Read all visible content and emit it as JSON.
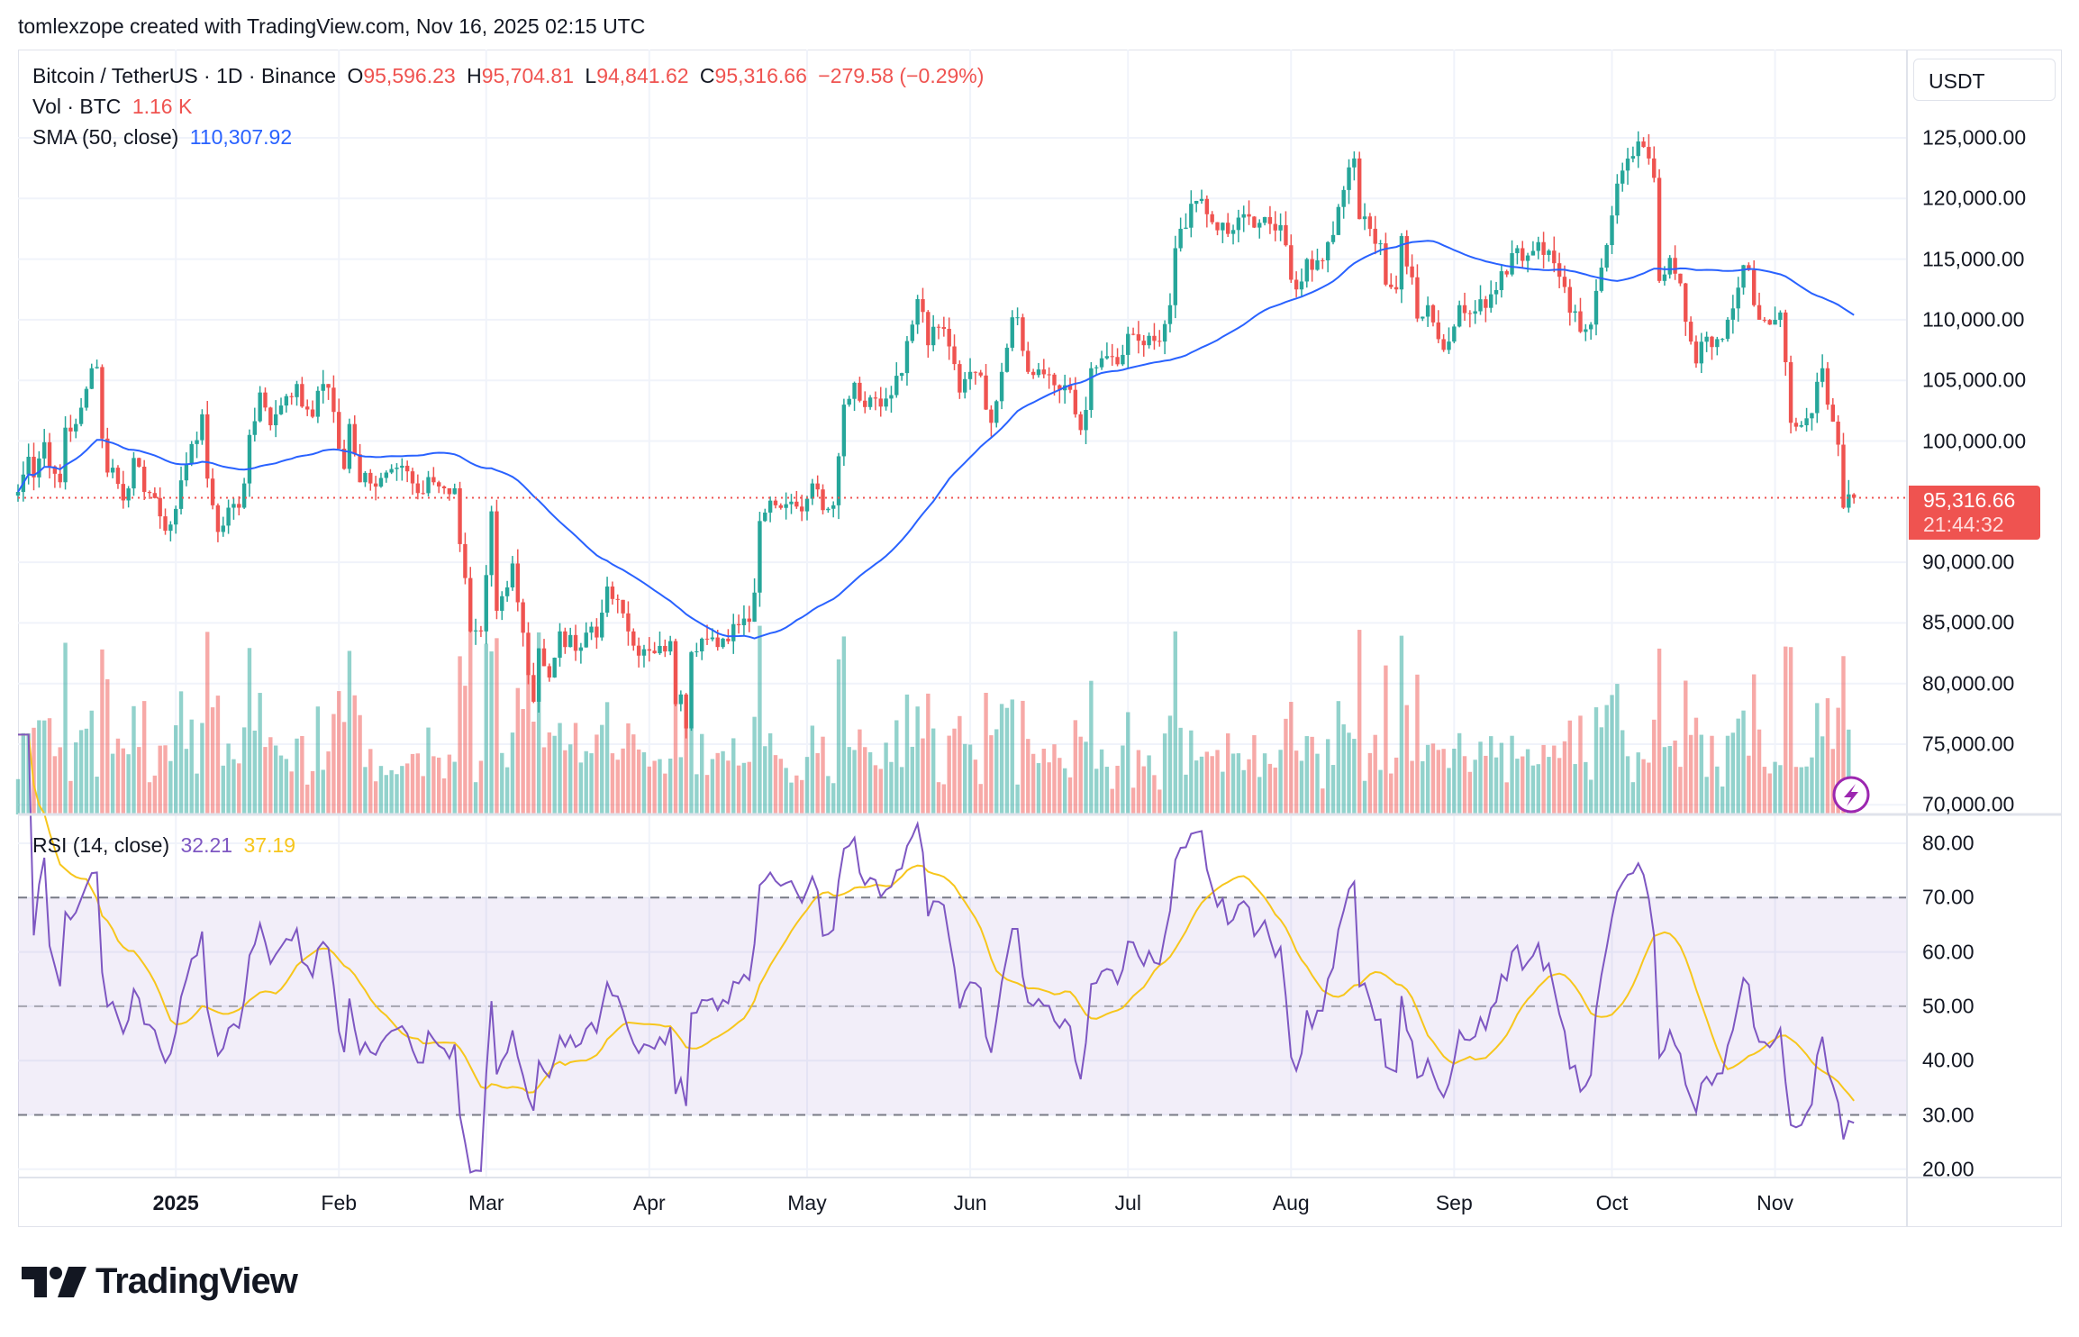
{
  "attribution": "tomlexzope created with TradingView.com, Nov 16, 2025 02:15 UTC",
  "legend": {
    "symbol": "Bitcoin / TetherUS · 1D · Binance",
    "o_label": "O",
    "open": "95,596.23",
    "h_label": "H",
    "high": "95,704.81",
    "l_label": "L",
    "low": "94,841.62",
    "c_label": "C",
    "close": "95,316.66",
    "change": "−279.58 (−0.29%)",
    "vol_label": "Vol · BTC",
    "vol_value": "1.16 K",
    "sma_label": "SMA (50, close)",
    "sma_value": "110,307.92",
    "rsi_label": "RSI (14, close)",
    "rsi_value": "32.21",
    "rsi_ma_value": "37.19"
  },
  "price_axis": {
    "currency": "USDT",
    "ticks": [
      "125,000.00",
      "120,000.00",
      "115,000.00",
      "110,000.00",
      "105,000.00",
      "100,000.00",
      "90,000.00",
      "85,000.00",
      "80,000.00",
      "75,000.00",
      "70,000.00"
    ],
    "last_price": "95,316.66",
    "countdown": "21:44:32"
  },
  "rsi_axis": {
    "ticks": [
      "80.00",
      "70.00",
      "60.00",
      "50.00",
      "40.00",
      "30.00",
      "20.00"
    ],
    "bands": [
      30,
      50,
      70
    ]
  },
  "time_axis": [
    {
      "label": "2025",
      "date": "2025-01-01",
      "bold": true
    },
    {
      "label": "Feb",
      "date": "2025-02-01"
    },
    {
      "label": "Mar",
      "date": "2025-03-01"
    },
    {
      "label": "Apr",
      "date": "2025-04-01"
    },
    {
      "label": "May",
      "date": "2025-05-01"
    },
    {
      "label": "Jun",
      "date": "2025-06-01"
    },
    {
      "label": "Jul",
      "date": "2025-07-01"
    },
    {
      "label": "Aug",
      "date": "2025-08-01"
    },
    {
      "label": "Sep",
      "date": "2025-09-01"
    },
    {
      "label": "Oct",
      "date": "2025-10-01"
    },
    {
      "label": "Nov",
      "date": "2025-11-01"
    }
  ],
  "colors": {
    "up": "#26a69a",
    "down": "#ef5350",
    "sma": "#2962ff",
    "rsi": "#7e57c2",
    "rsi_ma": "#f7c61c",
    "grid": "#f0f3fa"
  },
  "brand": "TradingView",
  "chart_data": {
    "type": "candlestick",
    "interval": "1D",
    "x_range": [
      "2024-12-02",
      "2025-11-16"
    ],
    "ylim": [
      70000,
      126000
    ],
    "rsi_ylim": [
      20,
      82
    ],
    "last_candle": {
      "date": "2025-11-16",
      "open": 95596.23,
      "high": 95704.81,
      "low": 94841.62,
      "close": 95316.66
    },
    "closes": [
      [
        "2024-12-02",
        95800
      ],
      [
        "2024-12-04",
        98700
      ],
      [
        "2024-12-05",
        97000
      ],
      [
        "2024-12-07",
        99900
      ],
      [
        "2024-12-09",
        97300
      ],
      [
        "2024-12-10",
        96600
      ],
      [
        "2024-12-11",
        101100
      ],
      [
        "2024-12-13",
        101400
      ],
      [
        "2024-12-15",
        104300
      ],
      [
        "2024-12-16",
        106000
      ],
      [
        "2024-12-17",
        106100
      ],
      [
        "2024-12-18",
        100200
      ],
      [
        "2024-12-19",
        97400
      ],
      [
        "2024-12-20",
        97800
      ],
      [
        "2024-12-22",
        95100
      ],
      [
        "2024-12-24",
        98600
      ],
      [
        "2024-12-26",
        95800
      ],
      [
        "2024-12-28",
        95300
      ],
      [
        "2024-12-30",
        92600
      ],
      [
        "2025-01-01",
        94400
      ],
      [
        "2025-01-03",
        98100
      ],
      [
        "2025-01-06",
        102200
      ],
      [
        "2025-01-07",
        96900
      ],
      [
        "2025-01-09",
        92500
      ],
      [
        "2025-01-11",
        94500
      ],
      [
        "2025-01-13",
        94500
      ],
      [
        "2025-01-14",
        96500
      ],
      [
        "2025-01-15",
        100500
      ],
      [
        "2025-01-17",
        104000
      ],
      [
        "2025-01-19",
        101300
      ],
      [
        "2025-01-20",
        102200
      ],
      [
        "2025-01-22",
        103700
      ],
      [
        "2025-01-24",
        104700
      ],
      [
        "2025-01-26",
        102600
      ],
      [
        "2025-01-27",
        102000
      ],
      [
        "2025-01-29",
        104700
      ],
      [
        "2025-01-31",
        102400
      ],
      [
        "2025-02-02",
        97700
      ],
      [
        "2025-02-03",
        101400
      ],
      [
        "2025-02-05",
        96600
      ],
      [
        "2025-02-07",
        96500
      ],
      [
        "2025-02-10",
        97400
      ],
      [
        "2025-02-12",
        97800
      ],
      [
        "2025-02-14",
        97500
      ],
      [
        "2025-02-17",
        95700
      ],
      [
        "2025-02-19",
        96600
      ],
      [
        "2025-02-21",
        96100
      ],
      [
        "2025-02-23",
        96100
      ],
      [
        "2025-02-24",
        91500
      ],
      [
        "2025-02-25",
        88700
      ],
      [
        "2025-02-26",
        84300
      ],
      [
        "2025-02-28",
        84300
      ],
      [
        "2025-03-02",
        94200
      ],
      [
        "2025-03-03",
        86000
      ],
      [
        "2025-03-04",
        87200
      ],
      [
        "2025-03-06",
        89900
      ],
      [
        "2025-03-07",
        86700
      ],
      [
        "2025-03-09",
        80700
      ],
      [
        "2025-03-10",
        78500
      ],
      [
        "2025-03-11",
        82900
      ],
      [
        "2025-03-13",
        80500
      ],
      [
        "2025-03-15",
        84300
      ],
      [
        "2025-03-18",
        82700
      ],
      [
        "2025-03-20",
        84200
      ],
      [
        "2025-03-22",
        83800
      ],
      [
        "2025-03-24",
        88000
      ],
      [
        "2025-03-26",
        86900
      ],
      [
        "2025-03-28",
        84300
      ],
      [
        "2025-03-30",
        82300
      ],
      [
        "2025-04-02",
        82500
      ],
      [
        "2025-04-03",
        83100
      ],
      [
        "2025-04-05",
        83500
      ],
      [
        "2025-04-06",
        78300
      ],
      [
        "2025-04-07",
        79100
      ],
      [
        "2025-04-08",
        76300
      ],
      [
        "2025-04-09",
        82600
      ],
      [
        "2025-04-11",
        83700
      ],
      [
        "2025-04-13",
        83800
      ],
      [
        "2025-04-15",
        83700
      ],
      [
        "2025-04-17",
        84900
      ],
      [
        "2025-04-20",
        85100
      ],
      [
        "2025-04-21",
        87500
      ],
      [
        "2025-04-22",
        93400
      ],
      [
        "2025-04-25",
        94700
      ],
      [
        "2025-04-28",
        95000
      ],
      [
        "2025-04-30",
        94200
      ],
      [
        "2025-05-02",
        96500
      ],
      [
        "2025-05-04",
        94300
      ],
      [
        "2025-05-06",
        94700
      ],
      [
        "2025-05-08",
        103000
      ],
      [
        "2025-05-10",
        104800
      ],
      [
        "2025-05-12",
        102800
      ],
      [
        "2025-05-14",
        103500
      ],
      [
        "2025-05-16",
        103500
      ],
      [
        "2025-05-19",
        105600
      ],
      [
        "2025-05-21",
        109600
      ],
      [
        "2025-05-22",
        111700
      ],
      [
        "2025-05-24",
        107900
      ],
      [
        "2025-05-26",
        109400
      ],
      [
        "2025-05-28",
        107800
      ],
      [
        "2025-05-30",
        104000
      ],
      [
        "2025-06-01",
        105700
      ],
      [
        "2025-06-03",
        105400
      ],
      [
        "2025-06-05",
        101500
      ],
      [
        "2025-06-07",
        105700
      ],
      [
        "2025-06-09",
        110200
      ],
      [
        "2025-06-10",
        110200
      ],
      [
        "2025-06-12",
        105700
      ],
      [
        "2025-06-15",
        105500
      ],
      [
        "2025-06-17",
        104600
      ],
      [
        "2025-06-19",
        104600
      ],
      [
        "2025-06-21",
        102200
      ],
      [
        "2025-06-22",
        100900
      ],
      [
        "2025-06-24",
        106000
      ],
      [
        "2025-06-27",
        107000
      ],
      [
        "2025-06-30",
        107100
      ],
      [
        "2025-07-02",
        108800
      ],
      [
        "2025-07-04",
        107900
      ],
      [
        "2025-07-07",
        108200
      ],
      [
        "2025-07-09",
        111200
      ],
      [
        "2025-07-10",
        115900
      ],
      [
        "2025-07-11",
        117500
      ],
      [
        "2025-07-14",
        119800
      ],
      [
        "2025-07-16",
        118700
      ],
      [
        "2025-07-19",
        118000
      ],
      [
        "2025-07-21",
        117400
      ],
      [
        "2025-07-23",
        118700
      ],
      [
        "2025-07-25",
        117600
      ],
      [
        "2025-07-28",
        117900
      ],
      [
        "2025-07-30",
        117800
      ],
      [
        "2025-08-01",
        113300
      ],
      [
        "2025-08-02",
        112500
      ],
      [
        "2025-08-04",
        115000
      ],
      [
        "2025-08-06",
        114900
      ],
      [
        "2025-08-08",
        116400
      ],
      [
        "2025-08-10",
        119300
      ],
      [
        "2025-08-13",
        123300
      ],
      [
        "2025-08-14",
        118300
      ],
      [
        "2025-08-16",
        117500
      ],
      [
        "2025-08-18",
        116300
      ],
      [
        "2025-08-19",
        112900
      ],
      [
        "2025-08-21",
        112500
      ],
      [
        "2025-08-22",
        116900
      ],
      [
        "2025-08-24",
        113500
      ],
      [
        "2025-08-25",
        110100
      ],
      [
        "2025-08-27",
        111200
      ],
      [
        "2025-08-29",
        108400
      ],
      [
        "2025-08-31",
        108200
      ],
      [
        "2025-09-02",
        111200
      ],
      [
        "2025-09-05",
        110700
      ],
      [
        "2025-09-08",
        112100
      ],
      [
        "2025-09-10",
        114000
      ],
      [
        "2025-09-13",
        115900
      ],
      [
        "2025-09-15",
        115300
      ],
      [
        "2025-09-17",
        116400
      ],
      [
        "2025-09-19",
        115700
      ],
      [
        "2025-09-22",
        112700
      ],
      [
        "2025-09-25",
        109000
      ],
      [
        "2025-09-27",
        109600
      ],
      [
        "2025-09-29",
        114300
      ],
      [
        "2025-10-01",
        118600
      ],
      [
        "2025-10-03",
        122300
      ],
      [
        "2025-10-05",
        123500
      ],
      [
        "2025-10-06",
        124700
      ],
      [
        "2025-10-08",
        123300
      ],
      [
        "2025-10-09",
        121700
      ],
      [
        "2025-10-10",
        113200
      ],
      [
        "2025-10-12",
        115100
      ],
      [
        "2025-10-14",
        113000
      ],
      [
        "2025-10-16",
        108200
      ],
      [
        "2025-10-17",
        106400
      ],
      [
        "2025-10-19",
        108600
      ],
      [
        "2025-10-21",
        108400
      ],
      [
        "2025-10-23",
        110000
      ],
      [
        "2025-10-26",
        114500
      ],
      [
        "2025-10-27",
        114100
      ],
      [
        "2025-10-29",
        110000
      ],
      [
        "2025-10-31",
        109600
      ],
      [
        "2025-11-02",
        110600
      ],
      [
        "2025-11-03",
        106500
      ],
      [
        "2025-11-04",
        101500
      ],
      [
        "2025-11-06",
        101300
      ],
      [
        "2025-11-08",
        102300
      ],
      [
        "2025-11-10",
        106000
      ],
      [
        "2025-11-11",
        103000
      ],
      [
        "2025-11-12",
        101600
      ],
      [
        "2025-11-13",
        99700
      ],
      [
        "2025-11-14",
        94500
      ],
      [
        "2025-11-15",
        95600
      ],
      [
        "2025-11-16",
        95316.66
      ]
    ]
  }
}
